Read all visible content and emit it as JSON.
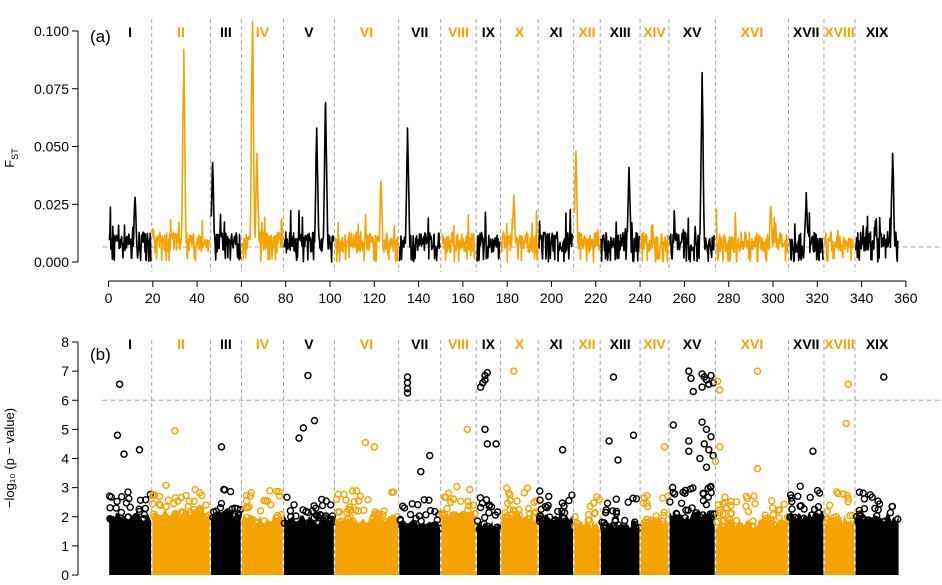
{
  "colors": {
    "odd": "#000000",
    "even": "#f5a300",
    "threshold": "#a6a6a6",
    "divider": "#a6a6a6"
  },
  "chromosomes": [
    {
      "label": "I",
      "start": 0,
      "end": 19.5
    },
    {
      "label": "II",
      "start": 19.5,
      "end": 46
    },
    {
      "label": "III",
      "start": 46,
      "end": 60
    },
    {
      "label": "IV",
      "start": 60,
      "end": 79
    },
    {
      "label": "V",
      "start": 79,
      "end": 102
    },
    {
      "label": "VI",
      "start": 102,
      "end": 131
    },
    {
      "label": "VII",
      "start": 131,
      "end": 150
    },
    {
      "label": "VIII",
      "start": 150,
      "end": 166
    },
    {
      "label": "IX",
      "start": 166,
      "end": 177
    },
    {
      "label": "X",
      "start": 177,
      "end": 194
    },
    {
      "label": "XI",
      "start": 194,
      "end": 210
    },
    {
      "label": "XII",
      "start": 210,
      "end": 222
    },
    {
      "label": "XIII",
      "start": 222,
      "end": 240
    },
    {
      "label": "XIV",
      "start": 240,
      "end": 253
    },
    {
      "label": "XV",
      "start": 253,
      "end": 274
    },
    {
      "label": "XVI",
      "start": 274,
      "end": 307
    },
    {
      "label": "XVII",
      "start": 307,
      "end": 323
    },
    {
      "label": "XVIII",
      "start": 323,
      "end": 337
    },
    {
      "label": "XIX",
      "start": 337,
      "end": 357
    }
  ],
  "chart_data": [
    {
      "type": "line",
      "panel_label": "(a)",
      "ylabel_main": "F",
      "ylabel_sub": "ST",
      "xlabel": "",
      "xlim": [
        0,
        360
      ],
      "ylim": [
        0,
        0.1
      ],
      "x_ticks": [
        0,
        20,
        40,
        60,
        80,
        100,
        120,
        140,
        160,
        180,
        200,
        220,
        240,
        260,
        280,
        300,
        320,
        340,
        360
      ],
      "y_ticks": [
        "0.000",
        "0.025",
        "0.050",
        "0.075",
        "0.100"
      ],
      "threshold": 0.0065,
      "peaks": [
        {
          "chrom": "I",
          "x": 12,
          "y": 0.028
        },
        {
          "chrom": "II",
          "x": 34,
          "y": 0.092
        },
        {
          "chrom": "III",
          "x": 47,
          "y": 0.043
        },
        {
          "chrom": "IV",
          "x": 65,
          "y": 0.104
        },
        {
          "chrom": "IV",
          "x": 67,
          "y": 0.047
        },
        {
          "chrom": "V",
          "x": 94,
          "y": 0.058
        },
        {
          "chrom": "V",
          "x": 98,
          "y": 0.069
        },
        {
          "chrom": "VI",
          "x": 123,
          "y": 0.035
        },
        {
          "chrom": "VII",
          "x": 135,
          "y": 0.058
        },
        {
          "chrom": "X",
          "x": 183,
          "y": 0.029
        },
        {
          "chrom": "XII",
          "x": 211,
          "y": 0.048
        },
        {
          "chrom": "XIII",
          "x": 235,
          "y": 0.041
        },
        {
          "chrom": "XV",
          "x": 268,
          "y": 0.082
        },
        {
          "chrom": "XVI",
          "x": 299,
          "y": 0.024
        },
        {
          "chrom": "XVII",
          "x": 315,
          "y": 0.03
        },
        {
          "chrom": "XIX",
          "x": 354,
          "y": 0.047
        }
      ]
    },
    {
      "type": "scatter",
      "panel_label": "(b)",
      "ylabel": "−log₁₀ (p − value)",
      "xlim": [
        0,
        360
      ],
      "ylim": [
        0,
        8
      ],
      "y_ticks": [
        0,
        1,
        2,
        3,
        4,
        5,
        6,
        7,
        8
      ],
      "threshold": 6,
      "outliers": [
        {
          "x": 5,
          "y": 6.55
        },
        {
          "x": 4,
          "y": 4.8
        },
        {
          "x": 7,
          "y": 4.15
        },
        {
          "x": 14,
          "y": 4.3
        },
        {
          "x": 30,
          "y": 4.95
        },
        {
          "x": 51,
          "y": 4.4
        },
        {
          "x": 90,
          "y": 6.85
        },
        {
          "x": 86,
          "y": 4.7
        },
        {
          "x": 88,
          "y": 5.05
        },
        {
          "x": 93,
          "y": 5.3
        },
        {
          "x": 116,
          "y": 4.55
        },
        {
          "x": 120,
          "y": 4.4
        },
        {
          "x": 135,
          "y": 6.8
        },
        {
          "x": 135,
          "y": 6.6
        },
        {
          "x": 135,
          "y": 6.4
        },
        {
          "x": 135,
          "y": 6.25
        },
        {
          "x": 141,
          "y": 3.55
        },
        {
          "x": 145,
          "y": 4.1
        },
        {
          "x": 162,
          "y": 5.0
        },
        {
          "x": 171,
          "y": 6.95
        },
        {
          "x": 170,
          "y": 6.85
        },
        {
          "x": 170,
          "y": 6.7
        },
        {
          "x": 169,
          "y": 6.6
        },
        {
          "x": 168,
          "y": 6.45
        },
        {
          "x": 170,
          "y": 5.0
        },
        {
          "x": 171,
          "y": 4.5
        },
        {
          "x": 175,
          "y": 4.5
        },
        {
          "x": 183,
          "y": 7.0
        },
        {
          "x": 205,
          "y": 4.3
        },
        {
          "x": 228,
          "y": 6.8
        },
        {
          "x": 226,
          "y": 4.6
        },
        {
          "x": 230,
          "y": 3.95
        },
        {
          "x": 237,
          "y": 4.8
        },
        {
          "x": 251,
          "y": 4.4
        },
        {
          "x": 255,
          "y": 5.15
        },
        {
          "x": 262,
          "y": 7.0
        },
        {
          "x": 263,
          "y": 6.75
        },
        {
          "x": 264,
          "y": 6.3
        },
        {
          "x": 262,
          "y": 4.6
        },
        {
          "x": 262,
          "y": 4.25
        },
        {
          "x": 268,
          "y": 6.9
        },
        {
          "x": 269,
          "y": 6.8
        },
        {
          "x": 270,
          "y": 6.7
        },
        {
          "x": 271,
          "y": 6.55
        },
        {
          "x": 268,
          "y": 6.45
        },
        {
          "x": 272,
          "y": 6.85
        },
        {
          "x": 273,
          "y": 6.6
        },
        {
          "x": 275,
          "y": 6.65
        },
        {
          "x": 276,
          "y": 6.35
        },
        {
          "x": 268,
          "y": 5.25
        },
        {
          "x": 270,
          "y": 5.0
        },
        {
          "x": 272,
          "y": 4.75
        },
        {
          "x": 269,
          "y": 4.5
        },
        {
          "x": 271,
          "y": 4.3
        },
        {
          "x": 273,
          "y": 4.1
        },
        {
          "x": 274,
          "y": 3.9
        },
        {
          "x": 270,
          "y": 3.7
        },
        {
          "x": 276,
          "y": 4.4
        },
        {
          "x": 267,
          "y": 4.0
        },
        {
          "x": 293,
          "y": 7.0
        },
        {
          "x": 293,
          "y": 3.65
        },
        {
          "x": 318,
          "y": 4.25
        },
        {
          "x": 334,
          "y": 6.55
        },
        {
          "x": 333,
          "y": 5.2
        },
        {
          "x": 350,
          "y": 6.8
        }
      ]
    }
  ]
}
